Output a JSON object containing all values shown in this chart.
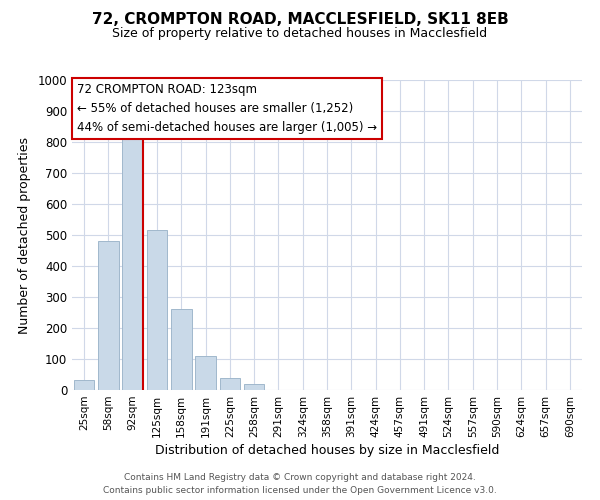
{
  "title": "72, CROMPTON ROAD, MACCLESFIELD, SK11 8EB",
  "subtitle": "Size of property relative to detached houses in Macclesfield",
  "xlabel": "Distribution of detached houses by size in Macclesfield",
  "ylabel": "Number of detached properties",
  "bar_labels": [
    "25sqm",
    "58sqm",
    "92sqm",
    "125sqm",
    "158sqm",
    "191sqm",
    "225sqm",
    "258sqm",
    "291sqm",
    "324sqm",
    "358sqm",
    "391sqm",
    "424sqm",
    "457sqm",
    "491sqm",
    "524sqm",
    "557sqm",
    "590sqm",
    "624sqm",
    "657sqm",
    "690sqm"
  ],
  "bar_values": [
    33,
    480,
    820,
    515,
    262,
    110,
    40,
    20,
    0,
    0,
    0,
    0,
    0,
    0,
    0,
    0,
    0,
    0,
    0,
    0,
    0
  ],
  "bar_color": "#c9d9e8",
  "bar_edge_color": "#a0b8cc",
  "ylim": [
    0,
    1000
  ],
  "yticks": [
    0,
    100,
    200,
    300,
    400,
    500,
    600,
    700,
    800,
    900,
    1000
  ],
  "marker_bar_index": 2,
  "marker_color": "#cc0000",
  "annotation_title": "72 CROMPTON ROAD: 123sqm",
  "annotation_line1": "← 55% of detached houses are smaller (1,252)",
  "annotation_line2": "44% of semi-detached houses are larger (1,005) →",
  "annotation_box_color": "#ffffff",
  "annotation_box_edge": "#cc0000",
  "footer1": "Contains HM Land Registry data © Crown copyright and database right 2024.",
  "footer2": "Contains public sector information licensed under the Open Government Licence v3.0.",
  "background_color": "#ffffff",
  "grid_color": "#d0d8e8"
}
